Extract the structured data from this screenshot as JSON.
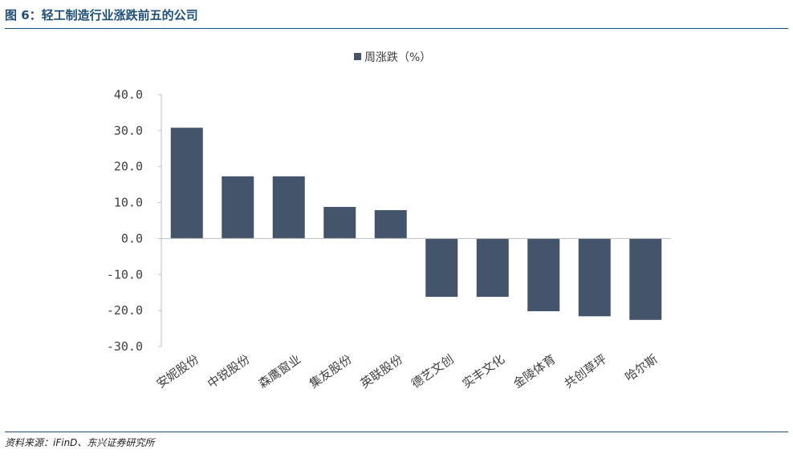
{
  "figure_title": "图 6：轻工制造行业涨跌前五的公司",
  "source": "资料来源：iFinD、东兴证券研究所",
  "colors": {
    "bar": "#44546a",
    "axis": "#bfbfbf",
    "title": "#1f4e79"
  },
  "chart_data": {
    "type": "bar",
    "title": "",
    "xlabel": "",
    "ylabel": "",
    "categories": [
      "安妮股份",
      "中锐股份",
      "森鹰窗业",
      "集友股份",
      "英联股份",
      "德艺文创",
      "实丰文化",
      "金陵体育",
      "共创草坪",
      "哈尔斯"
    ],
    "series": [
      {
        "name": "周涨跌（%）",
        "values": [
          30.8,
          17.3,
          17.3,
          8.8,
          7.9,
          -16.2,
          -16.2,
          -20.2,
          -21.6,
          -22.6
        ]
      }
    ],
    "ylim": [
      -30,
      40
    ],
    "yticks": [
      "40.0",
      "30.0",
      "20.0",
      "10.0",
      "0.0",
      "-10.0",
      "-20.0",
      "-30.0"
    ],
    "ytick_values": [
      40,
      30,
      20,
      10,
      0,
      -10,
      -20,
      -30
    ],
    "grid": false,
    "legend": "top-center"
  }
}
